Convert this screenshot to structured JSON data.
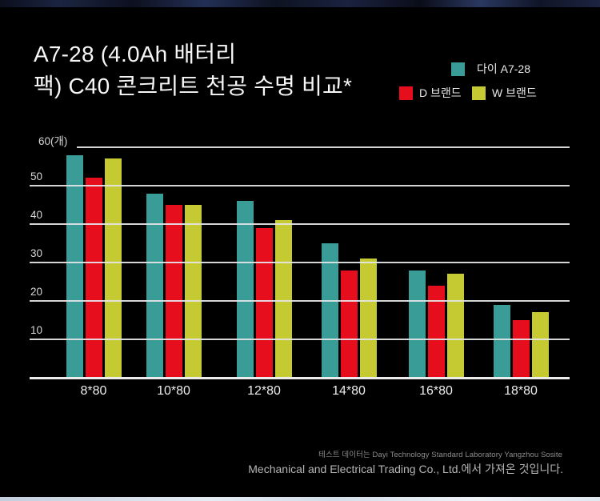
{
  "title": {
    "line1": "A7-28 (4.0Ah 배터리",
    "line2": "팩) C40 콘크리트 천공 수명 비교*"
  },
  "chart_data": {
    "type": "bar",
    "categories": [
      "8*80",
      "10*80",
      "12*80",
      "14*80",
      "16*80",
      "18*80"
    ],
    "series": [
      {
        "name": "다이 A7-28",
        "color": "#3a9c97",
        "values": [
          58,
          48,
          46,
          35,
          28,
          19
        ]
      },
      {
        "name": "D 브랜드",
        "color": "#e60d1d",
        "values": [
          52,
          45,
          39,
          28,
          24,
          15
        ]
      },
      {
        "name": "W 브랜드",
        "color": "#c5ca33",
        "values": [
          57,
          45,
          41,
          31,
          27,
          17
        ]
      }
    ],
    "ylim": [
      0,
      60
    ],
    "yticks": [
      10,
      20,
      30,
      40,
      50,
      60
    ],
    "ytick_top_label": "60(개)",
    "grid": true,
    "legend_position": "top-right",
    "background": "#000000",
    "gridline_color": "#e4e6e8"
  },
  "footnote": {
    "line1": "테스트 데이터는 Dayi Technology Standard Laboratory Yangzhou Sosite",
    "line2": "Mechanical and Electrical Trading Co., Ltd.에서 가져온 것입니다."
  }
}
